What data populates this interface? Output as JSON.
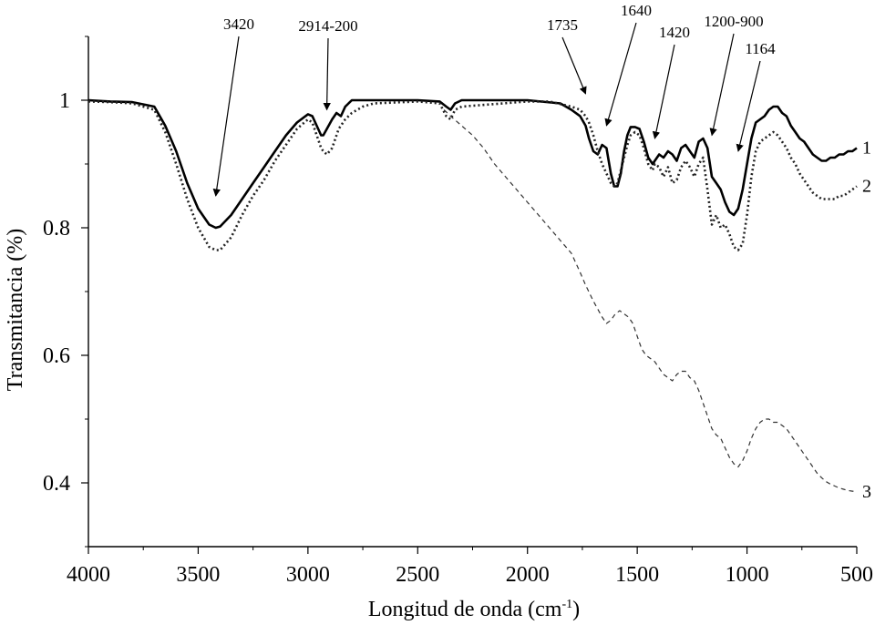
{
  "chart_data": {
    "type": "line",
    "title": "",
    "xlabel": "Longitud de onda (cm",
    "xlabel_sup": "-1",
    "xlabel_end": ")",
    "ylabel": "Transmitancia (%)",
    "xlim": [
      4000,
      500
    ],
    "ylim": [
      0.3,
      1.1
    ],
    "x_ticks": [
      4000,
      3500,
      3000,
      2500,
      2000,
      1500,
      1000,
      500
    ],
    "x_tick_labels": [
      "4000",
      "3500",
      "3000",
      "2500",
      "2000",
      "1500",
      "1000",
      "500"
    ],
    "y_ticks": [
      0.4,
      0.6,
      0.8,
      1.0
    ],
    "y_tick_labels": [
      "0.4",
      "0.6",
      "0.8",
      "1"
    ],
    "grid": false,
    "series": [
      {
        "name": "1",
        "style": "solid",
        "points": [
          [
            4000,
            1.0
          ],
          [
            3900,
            0.998
          ],
          [
            3800,
            0.997
          ],
          [
            3700,
            0.99
          ],
          [
            3650,
            0.96
          ],
          [
            3600,
            0.92
          ],
          [
            3550,
            0.87
          ],
          [
            3500,
            0.83
          ],
          [
            3450,
            0.805
          ],
          [
            3420,
            0.8
          ],
          [
            3400,
            0.802
          ],
          [
            3350,
            0.82
          ],
          [
            3300,
            0.845
          ],
          [
            3250,
            0.87
          ],
          [
            3200,
            0.895
          ],
          [
            3150,
            0.92
          ],
          [
            3100,
            0.945
          ],
          [
            3050,
            0.965
          ],
          [
            3000,
            0.978
          ],
          [
            2980,
            0.975
          ],
          [
            2960,
            0.96
          ],
          [
            2940,
            0.945
          ],
          [
            2930,
            0.945
          ],
          [
            2914,
            0.955
          ],
          [
            2890,
            0.97
          ],
          [
            2870,
            0.98
          ],
          [
            2850,
            0.975
          ],
          [
            2830,
            0.99
          ],
          [
            2800,
            1.0
          ],
          [
            2700,
            1.0
          ],
          [
            2500,
            1.0
          ],
          [
            2400,
            0.998
          ],
          [
            2370,
            0.99
          ],
          [
            2350,
            0.985
          ],
          [
            2330,
            0.995
          ],
          [
            2300,
            1.0
          ],
          [
            2000,
            1.0
          ],
          [
            1850,
            0.995
          ],
          [
            1800,
            0.985
          ],
          [
            1760,
            0.975
          ],
          [
            1735,
            0.96
          ],
          [
            1720,
            0.94
          ],
          [
            1700,
            0.92
          ],
          [
            1680,
            0.915
          ],
          [
            1660,
            0.93
          ],
          [
            1640,
            0.925
          ],
          [
            1620,
            0.885
          ],
          [
            1605,
            0.865
          ],
          [
            1590,
            0.865
          ],
          [
            1575,
            0.885
          ],
          [
            1560,
            0.92
          ],
          [
            1545,
            0.945
          ],
          [
            1530,
            0.958
          ],
          [
            1510,
            0.958
          ],
          [
            1490,
            0.955
          ],
          [
            1470,
            0.935
          ],
          [
            1450,
            0.91
          ],
          [
            1430,
            0.9
          ],
          [
            1420,
            0.905
          ],
          [
            1400,
            0.915
          ],
          [
            1380,
            0.91
          ],
          [
            1360,
            0.92
          ],
          [
            1340,
            0.915
          ],
          [
            1320,
            0.905
          ],
          [
            1300,
            0.925
          ],
          [
            1280,
            0.93
          ],
          [
            1260,
            0.92
          ],
          [
            1240,
            0.91
          ],
          [
            1220,
            0.935
          ],
          [
            1200,
            0.94
          ],
          [
            1180,
            0.925
          ],
          [
            1160,
            0.88
          ],
          [
            1140,
            0.87
          ],
          [
            1120,
            0.86
          ],
          [
            1100,
            0.84
          ],
          [
            1080,
            0.825
          ],
          [
            1060,
            0.82
          ],
          [
            1040,
            0.83
          ],
          [
            1020,
            0.86
          ],
          [
            1000,
            0.9
          ],
          [
            980,
            0.94
          ],
          [
            960,
            0.965
          ],
          [
            940,
            0.97
          ],
          [
            920,
            0.975
          ],
          [
            900,
            0.985
          ],
          [
            880,
            0.99
          ],
          [
            860,
            0.99
          ],
          [
            840,
            0.98
          ],
          [
            820,
            0.975
          ],
          [
            800,
            0.96
          ],
          [
            780,
            0.95
          ],
          [
            760,
            0.94
          ],
          [
            740,
            0.935
          ],
          [
            720,
            0.925
          ],
          [
            700,
            0.915
          ],
          [
            680,
            0.91
          ],
          [
            660,
            0.905
          ],
          [
            640,
            0.905
          ],
          [
            620,
            0.91
          ],
          [
            600,
            0.91
          ],
          [
            580,
            0.915
          ],
          [
            560,
            0.915
          ],
          [
            540,
            0.92
          ],
          [
            520,
            0.92
          ],
          [
            500,
            0.925
          ]
        ]
      },
      {
        "name": "2",
        "style": "dotted",
        "points": [
          [
            4000,
            0.998
          ],
          [
            3900,
            0.997
          ],
          [
            3800,
            0.995
          ],
          [
            3700,
            0.985
          ],
          [
            3650,
            0.95
          ],
          [
            3600,
            0.9
          ],
          [
            3550,
            0.845
          ],
          [
            3500,
            0.8
          ],
          [
            3450,
            0.77
          ],
          [
            3420,
            0.765
          ],
          [
            3400,
            0.765
          ],
          [
            3350,
            0.785
          ],
          [
            3300,
            0.82
          ],
          [
            3250,
            0.85
          ],
          [
            3200,
            0.875
          ],
          [
            3150,
            0.905
          ],
          [
            3100,
            0.93
          ],
          [
            3050,
            0.955
          ],
          [
            3000,
            0.97
          ],
          [
            2980,
            0.965
          ],
          [
            2960,
            0.945
          ],
          [
            2940,
            0.925
          ],
          [
            2930,
            0.92
          ],
          [
            2914,
            0.915
          ],
          [
            2890,
            0.925
          ],
          [
            2860,
            0.955
          ],
          [
            2830,
            0.97
          ],
          [
            2800,
            0.98
          ],
          [
            2750,
            0.99
          ],
          [
            2700,
            0.995
          ],
          [
            2500,
            0.998
          ],
          [
            2400,
            0.995
          ],
          [
            2370,
            0.975
          ],
          [
            2350,
            0.97
          ],
          [
            2330,
            0.985
          ],
          [
            2300,
            0.99
          ],
          [
            2000,
            0.998
          ],
          [
            1900,
            0.998
          ],
          [
            1800,
            0.99
          ],
          [
            1760,
            0.985
          ],
          [
            1735,
            0.975
          ],
          [
            1720,
            0.965
          ],
          [
            1700,
            0.945
          ],
          [
            1680,
            0.92
          ],
          [
            1660,
            0.9
          ],
          [
            1640,
            0.885
          ],
          [
            1620,
            0.87
          ],
          [
            1605,
            0.865
          ],
          [
            1590,
            0.87
          ],
          [
            1575,
            0.89
          ],
          [
            1560,
            0.91
          ],
          [
            1545,
            0.93
          ],
          [
            1530,
            0.945
          ],
          [
            1510,
            0.95
          ],
          [
            1490,
            0.945
          ],
          [
            1470,
            0.925
          ],
          [
            1450,
            0.9
          ],
          [
            1430,
            0.89
          ],
          [
            1420,
            0.9
          ],
          [
            1400,
            0.895
          ],
          [
            1380,
            0.88
          ],
          [
            1360,
            0.895
          ],
          [
            1340,
            0.87
          ],
          [
            1320,
            0.875
          ],
          [
            1300,
            0.895
          ],
          [
            1280,
            0.905
          ],
          [
            1260,
            0.895
          ],
          [
            1240,
            0.88
          ],
          [
            1220,
            0.9
          ],
          [
            1200,
            0.91
          ],
          [
            1180,
            0.86
          ],
          [
            1160,
            0.805
          ],
          [
            1140,
            0.82
          ],
          [
            1120,
            0.8
          ],
          [
            1100,
            0.805
          ],
          [
            1080,
            0.79
          ],
          [
            1060,
            0.77
          ],
          [
            1040,
            0.765
          ],
          [
            1020,
            0.775
          ],
          [
            1000,
            0.82
          ],
          [
            980,
            0.88
          ],
          [
            960,
            0.92
          ],
          [
            940,
            0.935
          ],
          [
            920,
            0.94
          ],
          [
            900,
            0.945
          ],
          [
            880,
            0.95
          ],
          [
            860,
            0.945
          ],
          [
            840,
            0.935
          ],
          [
            820,
            0.925
          ],
          [
            800,
            0.91
          ],
          [
            780,
            0.9
          ],
          [
            760,
            0.885
          ],
          [
            740,
            0.875
          ],
          [
            720,
            0.865
          ],
          [
            700,
            0.855
          ],
          [
            680,
            0.85
          ],
          [
            660,
            0.845
          ],
          [
            640,
            0.845
          ],
          [
            620,
            0.845
          ],
          [
            600,
            0.845
          ],
          [
            580,
            0.85
          ],
          [
            560,
            0.85
          ],
          [
            540,
            0.855
          ],
          [
            520,
            0.86
          ],
          [
            500,
            0.865
          ]
        ]
      },
      {
        "name": "3",
        "style": "dashed",
        "points": [
          [
            2380,
            0.985
          ],
          [
            2350,
            0.975
          ],
          [
            2300,
            0.96
          ],
          [
            2250,
            0.945
          ],
          [
            2200,
            0.925
          ],
          [
            2150,
            0.9
          ],
          [
            2100,
            0.88
          ],
          [
            2050,
            0.86
          ],
          [
            2000,
            0.84
          ],
          [
            1950,
            0.82
          ],
          [
            1900,
            0.8
          ],
          [
            1850,
            0.78
          ],
          [
            1800,
            0.76
          ],
          [
            1760,
            0.73
          ],
          [
            1735,
            0.71
          ],
          [
            1700,
            0.685
          ],
          [
            1660,
            0.66
          ],
          [
            1640,
            0.65
          ],
          [
            1620,
            0.655
          ],
          [
            1600,
            0.665
          ],
          [
            1580,
            0.67
          ],
          [
            1560,
            0.665
          ],
          [
            1540,
            0.66
          ],
          [
            1520,
            0.65
          ],
          [
            1500,
            0.63
          ],
          [
            1480,
            0.61
          ],
          [
            1460,
            0.6
          ],
          [
            1440,
            0.595
          ],
          [
            1420,
            0.59
          ],
          [
            1400,
            0.58
          ],
          [
            1380,
            0.57
          ],
          [
            1360,
            0.565
          ],
          [
            1340,
            0.56
          ],
          [
            1320,
            0.57
          ],
          [
            1300,
            0.575
          ],
          [
            1280,
            0.575
          ],
          [
            1260,
            0.565
          ],
          [
            1240,
            0.56
          ],
          [
            1220,
            0.545
          ],
          [
            1200,
            0.525
          ],
          [
            1180,
            0.505
          ],
          [
            1160,
            0.485
          ],
          [
            1140,
            0.475
          ],
          [
            1120,
            0.47
          ],
          [
            1100,
            0.455
          ],
          [
            1080,
            0.44
          ],
          [
            1060,
            0.43
          ],
          [
            1040,
            0.425
          ],
          [
            1020,
            0.435
          ],
          [
            1000,
            0.45
          ],
          [
            980,
            0.47
          ],
          [
            960,
            0.485
          ],
          [
            940,
            0.495
          ],
          [
            920,
            0.5
          ],
          [
            900,
            0.5
          ],
          [
            880,
            0.495
          ],
          [
            860,
            0.495
          ],
          [
            840,
            0.49
          ],
          [
            820,
            0.485
          ],
          [
            800,
            0.475
          ],
          [
            780,
            0.465
          ],
          [
            760,
            0.455
          ],
          [
            740,
            0.445
          ],
          [
            720,
            0.435
          ],
          [
            700,
            0.425
          ],
          [
            680,
            0.415
          ],
          [
            660,
            0.408
          ],
          [
            640,
            0.402
          ],
          [
            620,
            0.398
          ],
          [
            600,
            0.395
          ],
          [
            580,
            0.392
          ],
          [
            560,
            0.39
          ],
          [
            540,
            0.388
          ],
          [
            520,
            0.387
          ],
          [
            500,
            0.386
          ]
        ]
      }
    ],
    "annotations": [
      {
        "text": "3420",
        "target_x": 3420,
        "target_y": 0.85,
        "angle": "down"
      },
      {
        "text": "2914-200",
        "target_x": 2914,
        "target_y": 0.985,
        "angle": "down"
      },
      {
        "text": "1735",
        "target_x": 1735,
        "target_y": 1.01,
        "angle": "down"
      },
      {
        "text": "1640",
        "target_x": 1640,
        "target_y": 0.96,
        "angle": "down"
      },
      {
        "text": "1420",
        "target_x": 1420,
        "target_y": 0.94,
        "angle": "down"
      },
      {
        "text": "1200-900",
        "target_x": 1160,
        "target_y": 0.945,
        "angle": "down"
      },
      {
        "text": "1164",
        "target_x": 1040,
        "target_y": 0.92,
        "angle": "down"
      }
    ]
  }
}
